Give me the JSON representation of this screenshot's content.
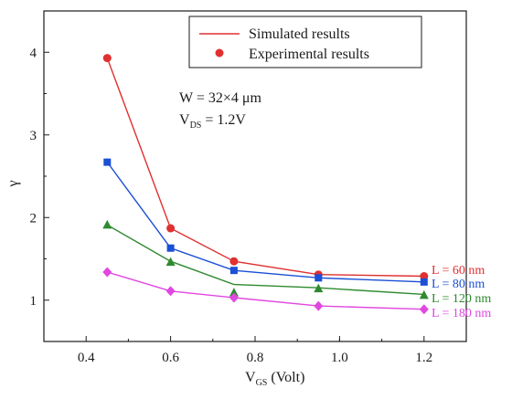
{
  "chart_data": {
    "type": "line",
    "xlabel_main": "V",
    "xlabel_sub": "GS",
    "xlabel_unit": " (Volt)",
    "ylabel": "γ",
    "xlim": [
      0.3,
      1.3
    ],
    "ylim": [
      0.5,
      4.5
    ],
    "x_ticks": [
      "0.4",
      "0.6",
      "0.8",
      "1.0",
      "1.2"
    ],
    "y_ticks": [
      "1",
      "2",
      "3",
      "4"
    ],
    "x": [
      0.45,
      0.6,
      0.75,
      0.95,
      1.2
    ],
    "grid": false,
    "legend_position": "top-right",
    "legend": [
      {
        "label": "Simulated results",
        "kind": "line",
        "color": "#e03030"
      },
      {
        "label": "Experimental results",
        "kind": "marker",
        "color": "#e03030"
      }
    ],
    "annotation": {
      "line1": "W = 32×4 μm",
      "line2_main": "V",
      "line2_sub": "DS",
      "line2_rest": " = 1.2V"
    },
    "series": [
      {
        "name": "L = 60 nm",
        "color": "#e03030",
        "marker": "circle",
        "sim": [
          3.93,
          1.87,
          1.47,
          1.31,
          1.29
        ],
        "exp": [
          3.93,
          1.87,
          1.47,
          1.31,
          1.29
        ]
      },
      {
        "name": "L = 80 nm",
        "color": "#1a4fd6",
        "marker": "square",
        "sim": [
          2.67,
          1.63,
          1.36,
          1.27,
          1.22
        ],
        "exp": [
          2.67,
          1.63,
          1.36,
          1.27,
          1.22
        ]
      },
      {
        "name": "L = 120 nm",
        "color": "#2e8a2e",
        "marker": "triangle",
        "sim": [
          1.91,
          1.47,
          1.19,
          1.15,
          1.07
        ],
        "exp": [
          1.91,
          1.46,
          1.09,
          1.14,
          1.06
        ]
      },
      {
        "name": "L = 180 nm",
        "color": "#e048e0",
        "marker": "diamond",
        "sim": [
          1.34,
          1.11,
          1.03,
          0.93,
          0.89
        ],
        "exp": [
          1.34,
          1.11,
          1.03,
          0.93,
          0.89
        ]
      }
    ]
  }
}
